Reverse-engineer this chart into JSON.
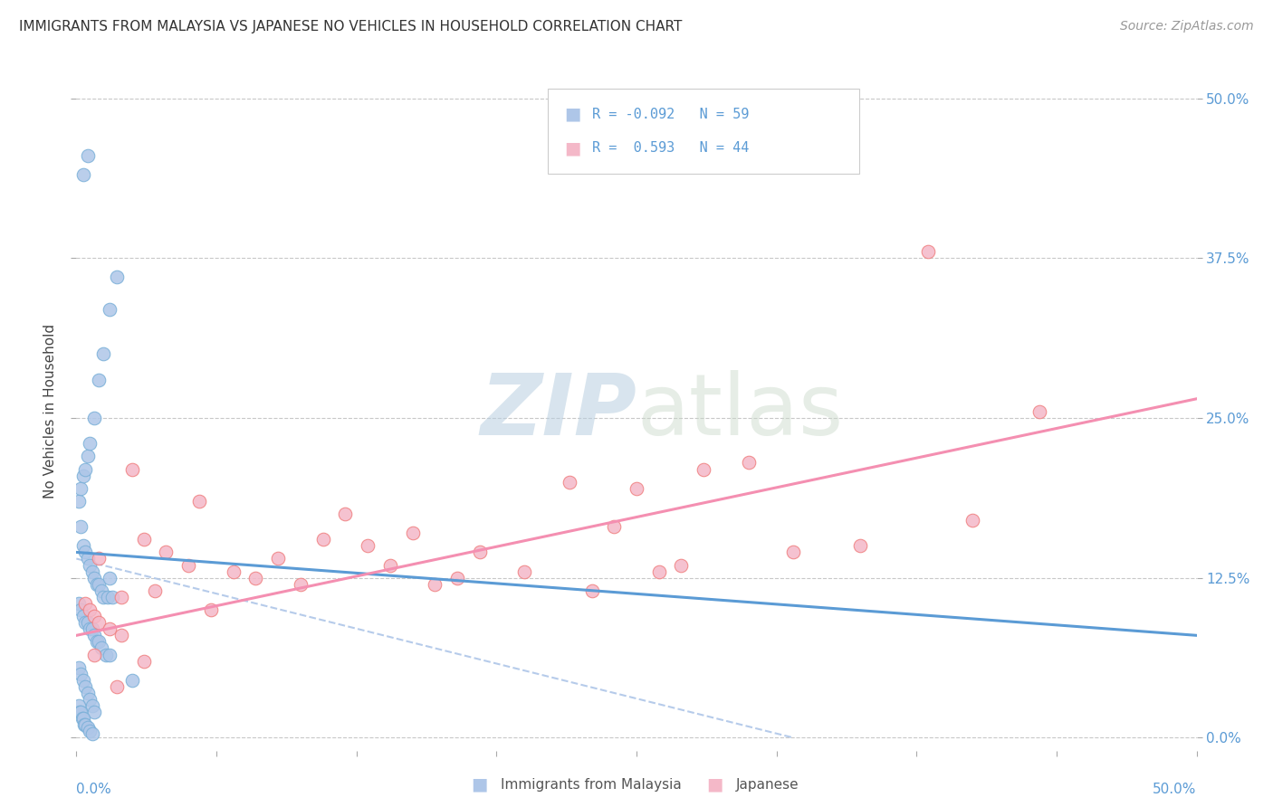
{
  "title": "IMMIGRANTS FROM MALAYSIA VS JAPANESE NO VEHICLES IN HOUSEHOLD CORRELATION CHART",
  "source": "Source: ZipAtlas.com",
  "ylabel": "No Vehicles in Household",
  "xlim": [
    0.0,
    50.0
  ],
  "ylim": [
    -1.0,
    52.0
  ],
  "ytick_values": [
    0.0,
    12.5,
    25.0,
    37.5,
    50.0
  ],
  "ytick_labels": [
    "0.0%",
    "12.5%",
    "25.0%",
    "37.5%",
    "50.0%"
  ],
  "xtick_values": [
    0.0,
    6.25,
    12.5,
    18.75,
    25.0,
    31.25,
    37.5,
    43.75,
    50.0
  ],
  "blue_scatter_x": [
    0.2,
    0.3,
    0.4,
    0.5,
    0.6,
    0.7,
    0.8,
    0.9,
    1.0,
    1.1,
    1.2,
    1.4,
    1.5,
    1.6,
    0.1,
    0.2,
    0.3,
    0.4,
    0.5,
    0.6,
    0.7,
    0.8,
    0.9,
    1.0,
    1.1,
    1.3,
    1.5,
    2.5,
    0.1,
    0.2,
    0.3,
    0.4,
    0.5,
    0.6,
    0.7,
    0.8,
    0.1,
    0.15,
    0.2,
    0.25,
    0.3,
    0.35,
    0.4,
    0.5,
    0.6,
    0.7,
    0.1,
    0.2,
    0.3,
    0.4,
    0.5,
    0.6,
    0.8,
    1.0,
    1.2,
    1.5,
    1.8,
    0.3,
    0.5
  ],
  "blue_scatter_y": [
    16.5,
    15.0,
    14.5,
    14.0,
    13.5,
    13.0,
    12.5,
    12.0,
    12.0,
    11.5,
    11.0,
    11.0,
    12.5,
    11.0,
    10.5,
    10.0,
    9.5,
    9.0,
    9.0,
    8.5,
    8.5,
    8.0,
    7.5,
    7.5,
    7.0,
    6.5,
    6.5,
    4.5,
    5.5,
    5.0,
    4.5,
    4.0,
    3.5,
    3.0,
    2.5,
    2.0,
    2.5,
    2.0,
    2.0,
    1.5,
    1.5,
    1.0,
    1.0,
    0.8,
    0.5,
    0.3,
    18.5,
    19.5,
    20.5,
    21.0,
    22.0,
    23.0,
    25.0,
    28.0,
    30.0,
    33.5,
    36.0,
    44.0,
    45.5
  ],
  "pink_scatter_x": [
    0.4,
    0.6,
    0.8,
    1.0,
    1.5,
    2.0,
    2.5,
    3.0,
    4.0,
    5.0,
    5.5,
    7.0,
    8.0,
    9.0,
    10.0,
    12.0,
    13.0,
    14.0,
    15.0,
    16.0,
    18.0,
    20.0,
    22.0,
    24.0,
    25.0,
    26.0,
    28.0,
    30.0,
    32.0,
    38.0,
    43.0,
    1.0,
    2.0,
    3.5,
    6.0,
    11.0,
    17.0,
    23.0,
    27.0,
    35.0,
    40.0,
    0.8,
    1.8,
    3.0
  ],
  "pink_scatter_y": [
    10.5,
    10.0,
    9.5,
    9.0,
    8.5,
    8.0,
    21.0,
    15.5,
    14.5,
    13.5,
    18.5,
    13.0,
    12.5,
    14.0,
    12.0,
    17.5,
    15.0,
    13.5,
    16.0,
    12.0,
    14.5,
    13.0,
    20.0,
    16.5,
    19.5,
    13.0,
    21.0,
    21.5,
    14.5,
    38.0,
    25.5,
    14.0,
    11.0,
    11.5,
    10.0,
    15.5,
    12.5,
    11.5,
    13.5,
    15.0,
    17.0,
    6.5,
    4.0,
    6.0
  ],
  "blue_line_x0": 0.0,
  "blue_line_x1": 50.0,
  "blue_line_y0": 14.5,
  "blue_line_y1": 8.0,
  "pink_line_x0": 0.0,
  "pink_line_x1": 50.0,
  "pink_line_y0": 8.0,
  "pink_line_y1": 26.5,
  "blue_dash_x0": 0.0,
  "blue_dash_x1": 32.0,
  "blue_dash_y0": 14.0,
  "blue_dash_y1": 0.0,
  "blue_color": "#5b9bd5",
  "pink_color": "#f48fb1",
  "blue_scatter_color": "#aec6e8",
  "pink_scatter_color": "#f4b8c8",
  "blue_edge_color": "#7ab0d8",
  "pink_edge_color": "#f08080",
  "watermark_zip": "ZIP",
  "watermark_atlas": "atlas",
  "background_color": "#ffffff",
  "grid_color": "#c8c8c8",
  "tick_color": "#5b9bd5",
  "legend_r1": "R = -0.092",
  "legend_n1": "N = 59",
  "legend_r2": "R =  0.593",
  "legend_n2": "N = 44",
  "bottom_legend1": "Immigrants from Malaysia",
  "bottom_legend2": "Japanese"
}
